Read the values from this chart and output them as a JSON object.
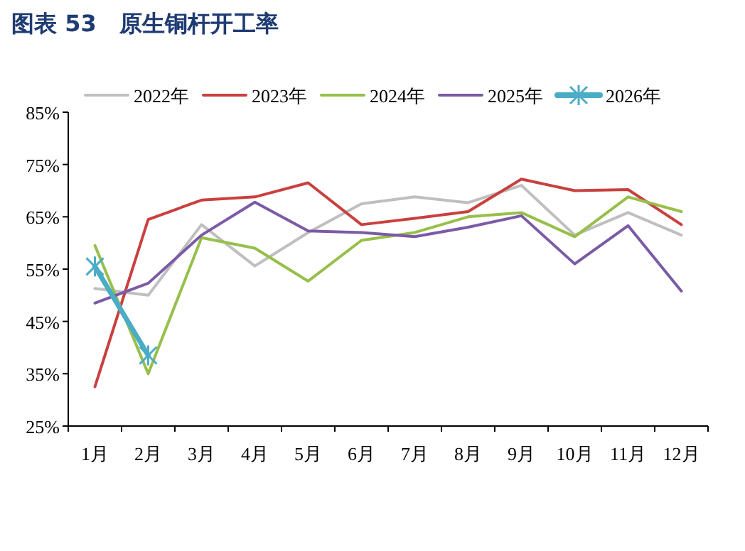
{
  "chart_data": {
    "type": "line",
    "title": "图表 53　原生铜杆开工率",
    "categories": [
      "1月",
      "2月",
      "3月",
      "4月",
      "5月",
      "6月",
      "7月",
      "8月",
      "9月",
      "10月",
      "11月",
      "12月"
    ],
    "series": [
      {
        "name": "2022年",
        "color": "#bfbfbf",
        "values": [
          51.3,
          50,
          63.5,
          55.6,
          62,
          67.5,
          68.8,
          67.7,
          71,
          61.5,
          65.8,
          61.5
        ]
      },
      {
        "name": "2023年",
        "color": "#c9403f",
        "values": [
          32.5,
          64.5,
          68.2,
          68.8,
          71.5,
          63.5,
          64.7,
          66,
          72.2,
          70,
          70.2,
          63.5
        ]
      },
      {
        "name": "2024年",
        "color": "#97bf4a",
        "values": [
          59.5,
          35,
          61,
          59,
          52.7,
          60.5,
          62,
          65,
          65.8,
          61.2,
          68.8,
          66
        ]
      },
      {
        "name": "2025年",
        "color": "#7b5aa6",
        "values": [
          48.5,
          52.3,
          61.5,
          67.8,
          62.3,
          62,
          61.2,
          63,
          65.2,
          56,
          63.3,
          50.8
        ]
      },
      {
        "name": "2026年",
        "color": "#4bacc6",
        "marker": "cross",
        "values": [
          55.5,
          38.5,
          null,
          null,
          null,
          null,
          null,
          null,
          null,
          null,
          null,
          null
        ]
      }
    ],
    "ylim": [
      25,
      85
    ],
    "yticks": [
      {
        "value": 25,
        "label": "25%"
      },
      {
        "value": 35,
        "label": "35%"
      },
      {
        "value": 45,
        "label": "45%"
      },
      {
        "value": 55,
        "label": "55%"
      },
      {
        "value": 65,
        "label": "65%"
      },
      {
        "value": 75,
        "label": "75%"
      },
      {
        "value": 85,
        "label": "85%"
      }
    ],
    "grid": false,
    "legend": "top"
  }
}
